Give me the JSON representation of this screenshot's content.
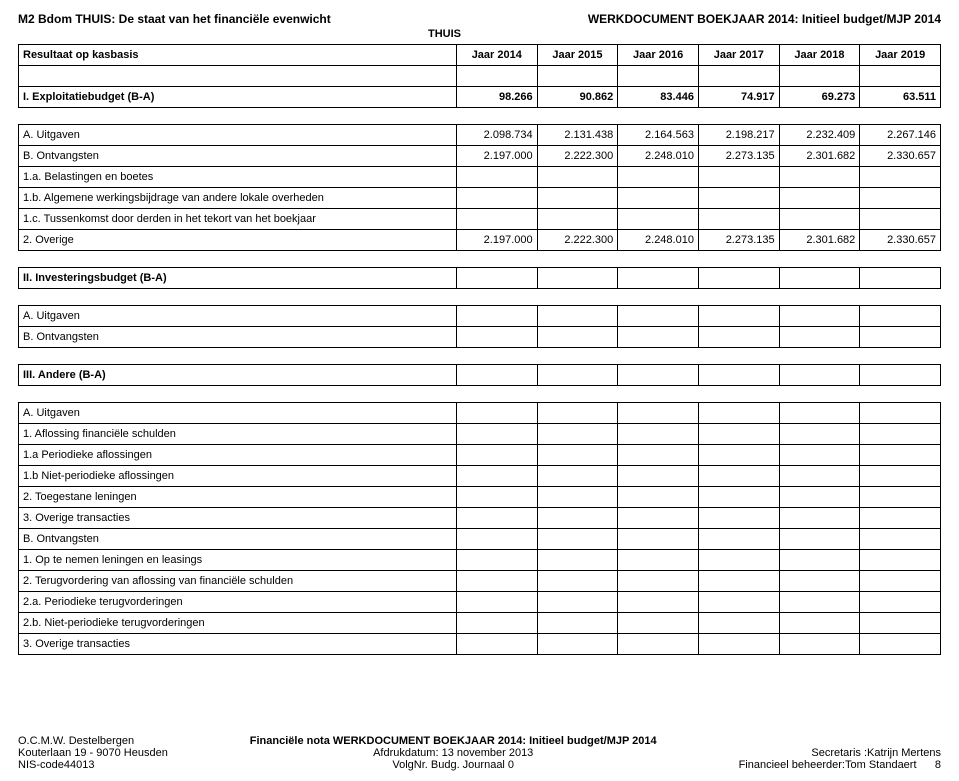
{
  "header": {
    "left_title": "M2 Bdom THUIS: De staat van het financiële evenwicht",
    "right_title": "WERKDOCUMENT BOEKJAAR 2014: Initieel budget/MJP 2014",
    "sub_center": "THUIS",
    "result_label": "Resultaat op kasbasis",
    "years": [
      "Jaar 2014",
      "Jaar 2015",
      "Jaar 2016",
      "Jaar 2017",
      "Jaar 2018",
      "Jaar 2019"
    ]
  },
  "sec1": {
    "title": "I. Exploitatiebudget (B-A)",
    "title_vals": [
      "98.266",
      "90.862",
      "83.446",
      "74.917",
      "69.273",
      "63.511"
    ],
    "rows": [
      {
        "label": "A. Uitgaven",
        "indent": 1,
        "vals": [
          "2.098.734",
          "2.131.438",
          "2.164.563",
          "2.198.217",
          "2.232.409",
          "2.267.146"
        ]
      },
      {
        "label": "B. Ontvangsten",
        "indent": 1,
        "vals": [
          "2.197.000",
          "2.222.300",
          "2.248.010",
          "2.273.135",
          "2.301.682",
          "2.330.657"
        ]
      },
      {
        "label": "1.a. Belastingen en boetes",
        "indent": 2,
        "vals": [
          "",
          "",
          "",
          "",
          "",
          ""
        ]
      },
      {
        "label": "1.b. Algemene werkingsbijdrage van andere lokale overheden",
        "indent": 2,
        "vals": [
          "",
          "",
          "",
          "",
          "",
          ""
        ]
      },
      {
        "label": "1.c. Tussenkomst door derden in het tekort van het boekjaar",
        "indent": 2,
        "vals": [
          "",
          "",
          "",
          "",
          "",
          ""
        ]
      },
      {
        "label": "2. Overige",
        "indent": 2,
        "vals": [
          "2.197.000",
          "2.222.300",
          "2.248.010",
          "2.273.135",
          "2.301.682",
          "2.330.657"
        ]
      }
    ]
  },
  "sec2": {
    "title": "II. Investeringsbudget (B-A)",
    "rows": [
      {
        "label": "A. Uitgaven",
        "indent": 1
      },
      {
        "label": "B. Ontvangsten",
        "indent": 1
      }
    ]
  },
  "sec3": {
    "title": "III. Andere (B-A)",
    "rows": [
      {
        "label": "A. Uitgaven",
        "indent": 1
      },
      {
        "label": "1. Aflossing financiële schulden",
        "indent": 2
      },
      {
        "label": "1.a Periodieke aflossingen",
        "indent": 3
      },
      {
        "label": "1.b Niet-periodieke aflossingen",
        "indent": 3
      },
      {
        "label": "2. Toegestane leningen",
        "indent": 2
      },
      {
        "label": "3. Overige transacties",
        "indent": 2
      },
      {
        "label": "B. Ontvangsten",
        "indent": 1
      },
      {
        "label": "1. Op te nemen leningen en leasings",
        "indent": 2
      },
      {
        "label": "2. Terugvordering van aflossing van financiële schulden",
        "indent": 2
      },
      {
        "label": "2.a. Periodieke terugvorderingen",
        "indent": 3
      },
      {
        "label": "2.b. Niet-periodieke terugvorderingen",
        "indent": 3
      },
      {
        "label": "3. Overige transacties",
        "indent": 2
      }
    ]
  },
  "footer": {
    "l1": "O.C.M.W. Destelbergen",
    "l2": "Kouterlaan 19 - 9070 Heusden",
    "l3": "NIS-code44013",
    "c1": "Financiële nota WERKDOCUMENT BOEKJAAR 2014: Initieel budget/MJP 2014",
    "c2": "Afdrukdatum: 13 november 2013",
    "c3": "VolgNr. Budg. Journaal 0",
    "r2": "Secretaris :Katrijn Mertens",
    "r3": "Financieel beheerder:Tom Standaert",
    "page": "8"
  }
}
